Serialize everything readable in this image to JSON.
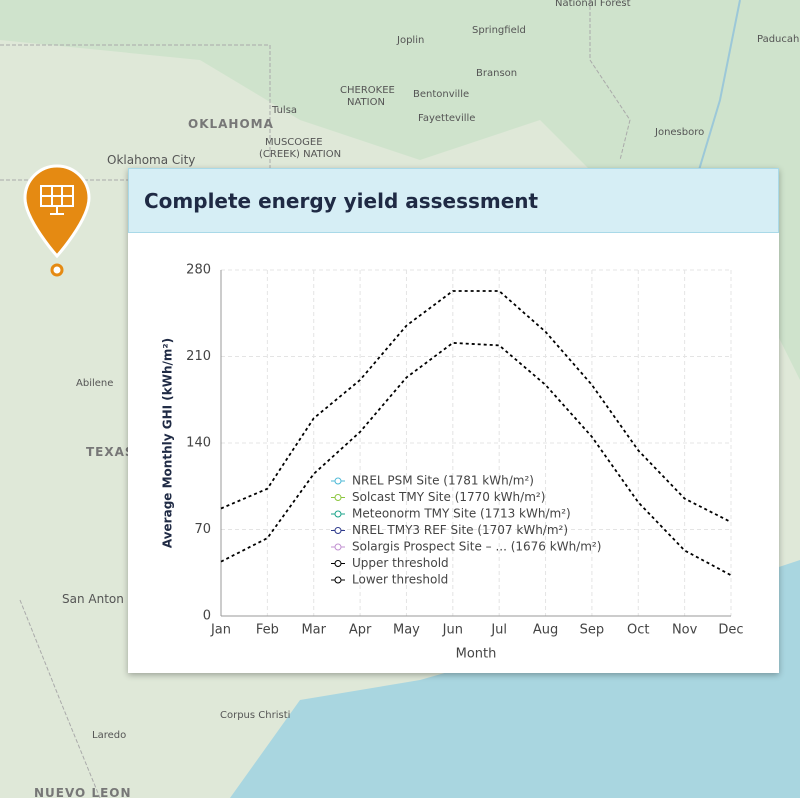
{
  "map": {
    "labels": [
      "National Forest",
      "Springfield",
      "Paducah",
      "Joplin",
      "Branson",
      "CHEROKEE",
      "NATION",
      "Bentonville",
      "Fayetteville",
      "OKLAHOMA",
      "Tulsa",
      "MUSCOGEE",
      "(CREEK) NATION",
      "Jonesboro",
      "Oklahoma City",
      "Abilene",
      "TEXAS",
      "San Anton",
      "Corpus Christi",
      "Laredo",
      "NUEVO LEON"
    ]
  },
  "chart_data": {
    "type": "line",
    "title": "Complete energy yield assessment",
    "x_label": "Month",
    "y_label": "Average Monthly GHI (kWh/m²)",
    "categories": [
      "Jan",
      "Feb",
      "Mar",
      "Apr",
      "May",
      "Jun",
      "Jul",
      "Aug",
      "Sep",
      "Oct",
      "Nov",
      "Dec"
    ],
    "ylim": [
      0,
      280
    ],
    "yticks": [
      0,
      70,
      140,
      210,
      280
    ],
    "grid": true,
    "series": [
      {
        "name": "NREL PSM Site (1781 kWh/m²)",
        "color": "#4cb8d6",
        "values": [
          null,
          null,
          null,
          null,
          null,
          null,
          null,
          null,
          null,
          null,
          null,
          null
        ]
      },
      {
        "name": "Solcast TMY Site (1770 kWh/m²)",
        "color": "#8cc63f",
        "values": [
          null,
          null,
          null,
          null,
          null,
          null,
          null,
          null,
          null,
          null,
          null,
          null
        ]
      },
      {
        "name": "Meteonorm TMY Site (1713 kWh/m²)",
        "color": "#1aa38a",
        "values": [
          null,
          null,
          null,
          null,
          null,
          null,
          null,
          null,
          null,
          null,
          null,
          null
        ]
      },
      {
        "name": "NREL TMY3 REF Site (1707 kWh/m²)",
        "color": "#2e3a8c",
        "values": [
          null,
          null,
          null,
          null,
          null,
          null,
          null,
          null,
          null,
          null,
          null,
          null
        ]
      },
      {
        "name": "Solargis Prospect Site – ... (1676 kWh/m²)",
        "color": "#c08fd0",
        "values": [
          null,
          null,
          null,
          null,
          null,
          null,
          null,
          null,
          null,
          null,
          null,
          null
        ]
      },
      {
        "name": "Upper threshold",
        "color": "#000000",
        "dashed": true,
        "values": [
          87,
          103,
          160,
          191,
          235,
          263,
          263,
          230,
          187,
          134,
          95,
          76
        ]
      },
      {
        "name": "Lower threshold",
        "color": "#000000",
        "dashed": true,
        "values": [
          44,
          63,
          115,
          149,
          193,
          221,
          219,
          187,
          145,
          92,
          53,
          33
        ]
      }
    ]
  }
}
